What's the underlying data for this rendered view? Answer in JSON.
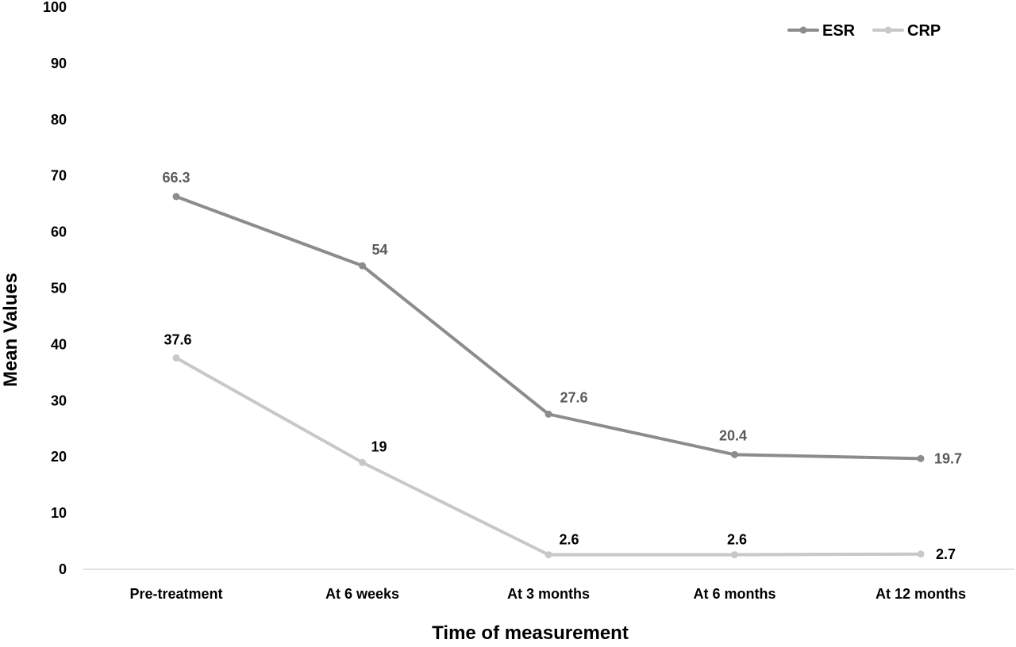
{
  "chart_data": {
    "type": "line",
    "title": "",
    "xlabel": "Time of measurement",
    "ylabel": "Mean Values",
    "categories": [
      "Pre-treatment",
      "At 6 weeks",
      "At 3 months",
      "At 6 months",
      "At 12 months"
    ],
    "ylim": [
      0,
      100
    ],
    "yticks": [
      "0",
      "10",
      "20",
      "30",
      "40",
      "50",
      "60",
      "70",
      "80",
      "90",
      "100"
    ],
    "grid": false,
    "legend": "top-right",
    "series": [
      {
        "name": "ESR",
        "values": [
          66.3,
          54,
          27.6,
          20.4,
          19.7
        ],
        "labels": [
          "66.3",
          "54",
          "27.6",
          "20.4",
          "19.7"
        ],
        "color": "#8c8c8c",
        "label_color": "#595959"
      },
      {
        "name": "CRP",
        "values": [
          37.6,
          19,
          2.6,
          2.6,
          2.7
        ],
        "labels": [
          "37.6",
          "19",
          "2.6",
          "2.6",
          "2.7"
        ],
        "color": "#c8c8c8",
        "label_color": "#000000"
      }
    ]
  }
}
